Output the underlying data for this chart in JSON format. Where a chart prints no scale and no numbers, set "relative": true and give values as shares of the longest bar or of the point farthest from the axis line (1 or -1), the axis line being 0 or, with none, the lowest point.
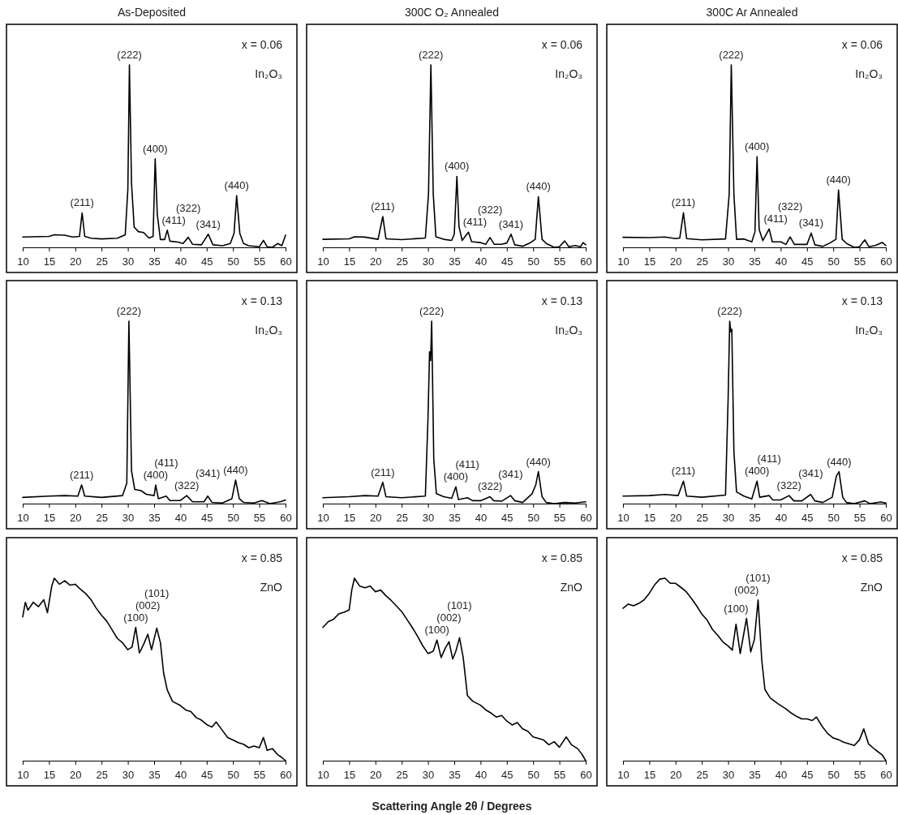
{
  "chart_data": [
    {
      "type": "line",
      "title": "As-Deposited",
      "relative": true,
      "color": "#000000",
      "xlim": [
        10,
        60
      ],
      "xticks": [
        10,
        15,
        20,
        25,
        30,
        35,
        40,
        45,
        50,
        55,
        60
      ],
      "x": [
        10,
        15,
        16,
        18,
        19.5,
        20.8,
        21.3,
        21.8,
        23,
        25,
        28,
        29.5,
        30,
        30.3,
        30.7,
        31.2,
        32,
        33,
        34,
        34.8,
        35.2,
        35.6,
        36.2,
        37,
        37.5,
        38,
        39.5,
        40.5,
        41.5,
        42.3,
        44,
        45.3,
        46.2,
        48,
        49.5,
        50.2,
        50.7,
        51.3,
        52,
        53,
        55,
        55.8,
        56.5,
        57.5,
        58.5,
        59.3,
        60
      ],
      "values": [
        0.057,
        0.06,
        0.069,
        0.067,
        0.057,
        0.06,
        0.189,
        0.06,
        0.05,
        0.046,
        0.05,
        0.069,
        0.317,
        1,
        0.35,
        0.111,
        0.086,
        0.081,
        0.051,
        0.06,
        0.485,
        0.18,
        0.043,
        0.043,
        0.094,
        0.034,
        0.029,
        0.021,
        0.055,
        0.017,
        0.014,
        0.072,
        0.014,
        0.009,
        0.021,
        0.077,
        0.283,
        0.077,
        0.021,
        0.009,
        0.003,
        0.038,
        0.003,
        0,
        0.021,
        0.009,
        0.067
      ],
      "annotations": [
        "x = 0.06",
        "In₂O₃",
        {
          "text": "(211)",
          "x": 21.3,
          "y": 0.189
        },
        {
          "text": "(222)",
          "x": 30.3,
          "y": 1
        },
        {
          "text": "(400)",
          "x": 35.2,
          "y": 0.485
        },
        {
          "text": "(411)",
          "x": 37.5,
          "y": 0.094
        },
        {
          "text": "(322)",
          "x": 41.5,
          "y": 0.055
        },
        {
          "text": "(341)",
          "x": 45.3,
          "y": 0.072
        },
        {
          "text": "(440)",
          "x": 50.7,
          "y": 0.283
        }
      ]
    },
    {
      "type": "line",
      "title": "300C O₂ Annealed",
      "relative": true,
      "color": "#000000",
      "xlim": [
        10,
        60
      ],
      "xticks": [
        10,
        15,
        20,
        25,
        30,
        35,
        40,
        45,
        50,
        55,
        60
      ],
      "x": [
        10,
        15,
        16,
        18,
        20.5,
        21.4,
        22,
        25,
        29.5,
        30.1,
        30.55,
        31,
        31.5,
        33,
        34.5,
        35,
        35.5,
        35.9,
        36.5,
        37.7,
        38.3,
        40,
        41,
        41.8,
        42.6,
        44,
        45,
        45.8,
        46.5,
        48,
        49.5,
        50.4,
        51,
        51.7,
        52.5,
        54,
        55,
        56,
        56.8,
        58,
        59,
        59.5,
        60
      ],
      "values": [
        0.044,
        0.047,
        0.058,
        0.056,
        0.044,
        0.169,
        0.047,
        0.042,
        0.051,
        0.294,
        1,
        0.294,
        0.058,
        0.044,
        0.038,
        0.072,
        0.389,
        0.114,
        0.038,
        0.083,
        0.031,
        0.026,
        0.017,
        0.054,
        0.017,
        0.017,
        0.024,
        0.072,
        0.014,
        0.006,
        0.026,
        0.044,
        0.278,
        0.044,
        0.021,
        0,
        0.003,
        0.035,
        0.003,
        0.01,
        0.003,
        0.026,
        0.014
      ],
      "annotations": [
        "x = 0.06",
        "In₂O₃",
        {
          "text": "(211)",
          "x": 21.4,
          "y": 0.169
        },
        {
          "text": "(222)",
          "x": 30.55,
          "y": 1
        },
        {
          "text": "(400)",
          "x": 35.5,
          "y": 0.389
        },
        {
          "text": "(411)",
          "x": 37.7,
          "y": 0.083
        },
        {
          "text": "(322)",
          "x": 41.8,
          "y": 0.054
        },
        {
          "text": "(341)",
          "x": 45.8,
          "y": 0.072
        },
        {
          "text": "(440)",
          "x": 51,
          "y": 0.278
        }
      ]
    },
    {
      "type": "line",
      "title": "300C Ar Annealed",
      "relative": true,
      "color": "#000000",
      "xlim": [
        10,
        60
      ],
      "xticks": [
        10,
        15,
        20,
        25,
        30,
        35,
        40,
        45,
        50,
        55,
        60
      ],
      "x": [
        10,
        15,
        18,
        20,
        20.8,
        21.5,
        22.1,
        25,
        29.5,
        30.2,
        30.6,
        31.1,
        31.6,
        33,
        34.5,
        35.1,
        35.5,
        35.9,
        36.6,
        37.8,
        38.4,
        40,
        41,
        41.8,
        42.6,
        44,
        45,
        45.8,
        46.5,
        48,
        49.5,
        50.5,
        51,
        51.7,
        52.6,
        54,
        55,
        56,
        56.8,
        58,
        59.3,
        60
      ],
      "values": [
        0.055,
        0.053,
        0.057,
        0.048,
        0.051,
        0.19,
        0.048,
        0.041,
        0.046,
        0.29,
        1,
        0.29,
        0.044,
        0.046,
        0.03,
        0.085,
        0.497,
        0.098,
        0.037,
        0.101,
        0.03,
        0.03,
        0.016,
        0.057,
        0.016,
        0.016,
        0.016,
        0.078,
        0.014,
        0.005,
        0.026,
        0.044,
        0.314,
        0.044,
        0.02,
        0,
        0.003,
        0.041,
        0.003,
        0.01,
        0.027,
        0.01
      ],
      "annotations": [
        "x = 0.06",
        "In₂O₃",
        {
          "text": "(211)",
          "x": 21.5,
          "y": 0.19
        },
        {
          "text": "(222)",
          "x": 30.6,
          "y": 1
        },
        {
          "text": "(400)",
          "x": 35.5,
          "y": 0.497
        },
        {
          "text": "(411)",
          "x": 37.8,
          "y": 0.101
        },
        {
          "text": "(322)",
          "x": 41.8,
          "y": 0.057
        },
        {
          "text": "(341)",
          "x": 45.8,
          "y": 0.078
        },
        {
          "text": "(440)",
          "x": 51,
          "y": 0.314
        }
      ]
    },
    {
      "type": "line",
      "relative": true,
      "color": "#000000",
      "xlim": [
        10,
        60
      ],
      "xticks": [
        10,
        15,
        20,
        25,
        30,
        35,
        40,
        45,
        50,
        55,
        60
      ],
      "x": [
        10,
        15,
        18,
        20.5,
        21.2,
        21.8,
        25,
        29,
        29.8,
        30.2,
        30.7,
        31.3,
        32.5,
        33.5,
        35,
        35.3,
        35.8,
        37.3,
        38,
        40,
        41.2,
        42.3,
        44.5,
        45.2,
        46,
        48,
        49.8,
        50.5,
        51.2,
        52,
        54,
        55.5,
        57,
        59,
        60
      ],
      "values": [
        0.034,
        0.041,
        0.044,
        0.041,
        0.102,
        0.041,
        0.034,
        0.044,
        0.112,
        1,
        0.18,
        0.078,
        0.071,
        0.051,
        0.044,
        0.102,
        0.027,
        0.041,
        0.017,
        0.017,
        0.044,
        0.01,
        0.01,
        0.041,
        0.007,
        0.003,
        0.027,
        0.129,
        0.027,
        0.007,
        0.003,
        0.017,
        0,
        0.01,
        0.02
      ],
      "annotations": [
        "x = 0.13",
        "In₂O₃",
        {
          "text": "(211)",
          "x": 21.2,
          "y": 0.102
        },
        {
          "text": "(222)",
          "x": 30.2,
          "y": 1
        },
        {
          "text": "(400)",
          "x": 35.3,
          "y": 0.102
        },
        {
          "text": "(411)",
          "x": 37.3,
          "y": 0.041
        },
        {
          "text": "(322)",
          "x": 41.2,
          "y": 0.044
        },
        {
          "text": "(341)",
          "x": 45.2,
          "y": 0.041
        },
        {
          "text": "(440)",
          "x": 50.5,
          "y": 0.129
        }
      ]
    },
    {
      "type": "line",
      "relative": true,
      "color": "#000000",
      "xlim": [
        10,
        60
      ],
      "xticks": [
        10,
        15,
        20,
        25,
        30,
        35,
        40,
        45,
        50,
        55,
        60
      ],
      "x": [
        10,
        15,
        18,
        20.5,
        21.4,
        22,
        25,
        29.5,
        30,
        30.3,
        30.5,
        30.7,
        31.1,
        31.6,
        33,
        34.5,
        35.3,
        35.8,
        37.5,
        38.5,
        40,
        41.8,
        42.5,
        44,
        45.7,
        46.5,
        48,
        49.8,
        50.5,
        51,
        51.7,
        52.5,
        54,
        56,
        58,
        60
      ],
      "values": [
        0.032,
        0.038,
        0.044,
        0.041,
        0.117,
        0.038,
        0.032,
        0.041,
        0.467,
        0.832,
        0.784,
        1,
        0.244,
        0.054,
        0.038,
        0.029,
        0.092,
        0.022,
        0.032,
        0.016,
        0.016,
        0.038,
        0.016,
        0.013,
        0.044,
        0.016,
        0.006,
        0.054,
        0.102,
        0.175,
        0.038,
        0.006,
        0,
        0.006,
        0.003,
        0.01
      ],
      "annotations": [
        "x = 0.13",
        "In₂O₃",
        {
          "text": "(211)",
          "x": 21.4,
          "y": 0.117
        },
        {
          "text": "(222)",
          "x": 30.7,
          "y": 1
        },
        {
          "text": "(400)",
          "x": 35.3,
          "y": 0.092
        },
        {
          "text": "(411)",
          "x": 37.5,
          "y": 0.032
        },
        {
          "text": "(322)",
          "x": 41.8,
          "y": 0.038
        },
        {
          "text": "(341)",
          "x": 45.7,
          "y": 0.044
        },
        {
          "text": "(440)",
          "x": 51,
          "y": 0.175
        }
      ]
    },
    {
      "type": "line",
      "relative": true,
      "color": "#000000",
      "xlim": [
        10,
        60
      ],
      "xticks": [
        10,
        15,
        20,
        25,
        30,
        35,
        40,
        45,
        50,
        55,
        60
      ],
      "x": [
        10,
        15,
        18,
        20.5,
        21.5,
        22.1,
        25,
        29.5,
        30,
        30.3,
        30.5,
        30.7,
        31.1,
        31.6,
        33,
        34.5,
        35.5,
        36,
        37.8,
        38.5,
        40,
        41.6,
        42.5,
        44,
        45.7,
        46.5,
        48,
        49.8,
        50.6,
        51.1,
        51.8,
        52.5,
        54,
        56,
        57,
        59,
        60
      ],
      "values": [
        0.041,
        0.044,
        0.05,
        0.044,
        0.123,
        0.041,
        0.035,
        0.047,
        0.576,
        1,
        0.942,
        0.956,
        0.284,
        0.064,
        0.041,
        0.026,
        0.123,
        0.035,
        0.044,
        0.02,
        0.02,
        0.044,
        0.015,
        0.015,
        0.05,
        0.015,
        0.006,
        0.035,
        0.152,
        0.175,
        0.035,
        0.006,
        0,
        0.015,
        0,
        0.009,
        0.003
      ],
      "annotations": [
        "x = 0.13",
        "In₂O₃",
        {
          "text": "(211)",
          "x": 21.5,
          "y": 0.123
        },
        {
          "text": "(222)",
          "x": 30.3,
          "y": 1
        },
        {
          "text": "(400)",
          "x": 35.5,
          "y": 0.123
        },
        {
          "text": "(411)",
          "x": 37.8,
          "y": 0.044
        },
        {
          "text": "(322)",
          "x": 41.6,
          "y": 0.044
        },
        {
          "text": "(341)",
          "x": 45.7,
          "y": 0.05
        },
        {
          "text": "(440)",
          "x": 51.1,
          "y": 0.175
        }
      ]
    },
    {
      "type": "line",
      "relative": true,
      "color": "#000000",
      "xlim": [
        10,
        60
      ],
      "xticks": [
        10,
        15,
        20,
        25,
        30,
        35,
        40,
        45,
        50,
        55,
        60
      ],
      "x": [
        10,
        10.5,
        11,
        12,
        13,
        14,
        14.7,
        15.5,
        16,
        17,
        18,
        19,
        20,
        21,
        22,
        23,
        24,
        25,
        26,
        27,
        28,
        29,
        30,
        30.8,
        31.5,
        32.2,
        33,
        33.8,
        34.5,
        35.5,
        36.2,
        36.8,
        37.5,
        38.5,
        40,
        41,
        42,
        43,
        44,
        45,
        46,
        46.8,
        48,
        49,
        50,
        51,
        52,
        53,
        54,
        55,
        55.8,
        56.5,
        57.5,
        58.5,
        59.2,
        60
      ],
      "values": [
        0.788,
        0.868,
        0.825,
        0.868,
        0.844,
        0.882,
        0.811,
        0.953,
        1,
        0.967,
        0.986,
        0.962,
        0.967,
        0.939,
        0.915,
        0.882,
        0.835,
        0.797,
        0.764,
        0.717,
        0.67,
        0.646,
        0.608,
        0.623,
        0.731,
        0.59,
        0.637,
        0.693,
        0.608,
        0.726,
        0.646,
        0.481,
        0.387,
        0.325,
        0.302,
        0.278,
        0.269,
        0.236,
        0.222,
        0.198,
        0.184,
        0.212,
        0.165,
        0.127,
        0.113,
        0.099,
        0.09,
        0.071,
        0.08,
        0.071,
        0.127,
        0.057,
        0.066,
        0.033,
        0.019,
        0
      ],
      "annotations": [
        "x = 0.85",
        "ZnO",
        {
          "text": "(100)",
          "x": 31.5,
          "y": 0.731
        },
        {
          "text": "(002)",
          "x": 33.8,
          "y": 0.693
        },
        {
          "text": "(101)",
          "x": 35.5,
          "y": 0.726
        }
      ]
    },
    {
      "type": "line",
      "relative": true,
      "color": "#000000",
      "xlim": [
        10,
        60
      ],
      "xticks": [
        10,
        15,
        20,
        25,
        30,
        35,
        40,
        45,
        50,
        55,
        60
      ],
      "xlabel": "Scattering Angle 2θ / Degrees",
      "x": [
        10,
        11,
        12,
        13,
        14,
        15,
        15.5,
        16,
        17,
        18,
        19,
        20,
        21,
        22,
        23,
        24,
        25,
        26,
        27,
        28,
        29,
        30,
        31,
        31.7,
        32.5,
        33.3,
        34,
        34.7,
        35.3,
        36,
        36.7,
        37.5,
        38.5,
        40,
        41,
        42,
        43,
        44,
        45,
        46,
        47,
        48,
        49,
        50,
        51,
        52,
        53,
        54,
        55,
        56.3,
        57.3,
        58.5,
        59.3,
        60
      ],
      "values": [
        0.73,
        0.761,
        0.774,
        0.804,
        0.813,
        0.826,
        0.935,
        1,
        0.957,
        0.948,
        0.957,
        0.926,
        0.935,
        0.904,
        0.878,
        0.848,
        0.817,
        0.774,
        0.73,
        0.683,
        0.63,
        0.587,
        0.6,
        0.661,
        0.565,
        0.617,
        0.652,
        0.557,
        0.6,
        0.674,
        0.565,
        0.357,
        0.326,
        0.304,
        0.278,
        0.261,
        0.239,
        0.248,
        0.217,
        0.196,
        0.209,
        0.174,
        0.161,
        0.13,
        0.122,
        0.113,
        0.087,
        0.104,
        0.074,
        0.13,
        0.087,
        0.065,
        0.035,
        0
      ],
      "annotations": [
        "x = 0.85",
        "ZnO",
        {
          "text": "(100)",
          "x": 31.7,
          "y": 0.661
        },
        {
          "text": "(002)",
          "x": 34,
          "y": 0.652
        },
        {
          "text": "(101)",
          "x": 36,
          "y": 0.674
        }
      ]
    },
    {
      "type": "line",
      "relative": true,
      "color": "#000000",
      "xlim": [
        10,
        60
      ],
      "xticks": [
        10,
        15,
        20,
        25,
        30,
        35,
        40,
        45,
        50,
        55,
        60
      ],
      "x": [
        10,
        11,
        12,
        13,
        14,
        15,
        16,
        17,
        18,
        19,
        20,
        21,
        22,
        23,
        24,
        25,
        26,
        27,
        28,
        29,
        30,
        30.8,
        31.5,
        32.3,
        33.5,
        34.3,
        35,
        35.7,
        36.4,
        37,
        38,
        39.5,
        41,
        42,
        43,
        44,
        45,
        46,
        46.8,
        48,
        49,
        50,
        51,
        52,
        53,
        54,
        55,
        55.8,
        56.7,
        58,
        59.3,
        60
      ],
      "values": [
        0.835,
        0.858,
        0.849,
        0.862,
        0.881,
        0.917,
        0.963,
        0.995,
        1,
        0.972,
        0.972,
        0.95,
        0.927,
        0.89,
        0.849,
        0.803,
        0.771,
        0.72,
        0.688,
        0.651,
        0.628,
        0.606,
        0.748,
        0.587,
        0.78,
        0.596,
        0.665,
        0.881,
        0.55,
        0.39,
        0.344,
        0.312,
        0.284,
        0.261,
        0.243,
        0.229,
        0.229,
        0.22,
        0.239,
        0.183,
        0.147,
        0.124,
        0.115,
        0.101,
        0.092,
        0.083,
        0.115,
        0.174,
        0.092,
        0.06,
        0.032,
        0
      ],
      "annotations": [
        "x = 0.85",
        "ZnO",
        {
          "text": "(100)",
          "x": 31.5,
          "y": 0.748
        },
        {
          "text": "(002)",
          "x": 33.5,
          "y": 0.78
        },
        {
          "text": "(101)",
          "x": 35.7,
          "y": 0.881
        }
      ]
    }
  ]
}
